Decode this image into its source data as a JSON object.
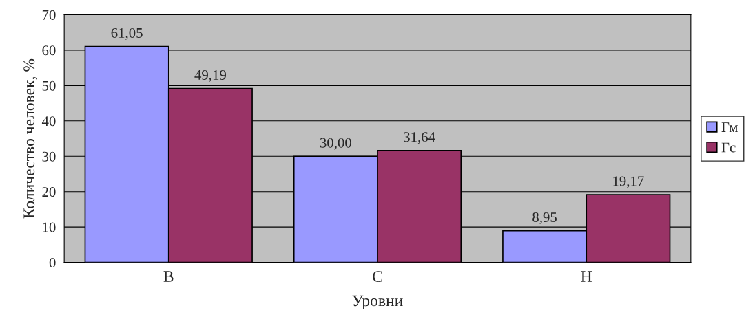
{
  "chart_data": {
    "type": "bar",
    "xlabel": "Уровни",
    "ylabel": "Количество человек, %",
    "categories": [
      "В",
      "С",
      "Н"
    ],
    "series": [
      {
        "name": "Гм",
        "color": "#9999ff",
        "values": [
          61.05,
          30.0,
          8.95
        ],
        "value_labels": [
          "61,05",
          "30,00",
          "8,95"
        ]
      },
      {
        "name": "Гс",
        "color": "#993366",
        "values": [
          49.19,
          31.64,
          19.17
        ],
        "value_labels": [
          "49,19",
          "31,64",
          "19,17"
        ]
      }
    ],
    "ylim": [
      0,
      70
    ],
    "yticks": [
      0,
      10,
      20,
      30,
      40,
      50,
      60,
      70
    ],
    "grid": "y",
    "legend": "right"
  }
}
